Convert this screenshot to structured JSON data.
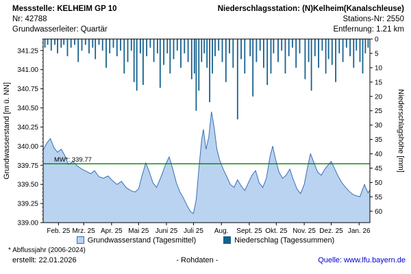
{
  "header": {
    "messstelle": "Messstelle: KELHEIM GP 10",
    "station": "Niederschlagsstation: (N)Kelheim(Kanalschleuse)",
    "nr": "Nr: 42788",
    "stations_nr": "Stations-Nr: 2550",
    "aquifer": "Grundwasserleiter: Quartär",
    "entfernung": "Entfernung: 1.21 km"
  },
  "chart_data": {
    "type": "combo-area-bar",
    "title": "",
    "x_axis": {
      "labels": [
        "Feb. 25",
        "Mrz. 25",
        "Apr. 25",
        "Mai 25",
        "Juni 25",
        "Juli 25",
        "Aug.",
        "Sept. 25",
        "Okt. 25",
        "Nov. 25",
        "Dez. 25",
        "Jan. 26"
      ],
      "tick_days": [
        17,
        45,
        76,
        106,
        137,
        167,
        198,
        229,
        259,
        290,
        320,
        351
      ],
      "total_days": 363
    },
    "left_axis": {
      "label": "Grundwasserstand [m ü. NN]",
      "min": 339.0,
      "max": 341.4,
      "minor_step": 0.05,
      "ticks": [
        339.0,
        339.25,
        339.5,
        339.75,
        340.0,
        340.25,
        340.5,
        340.75,
        341.0,
        341.25
      ]
    },
    "right_axis": {
      "label": "Niederschlagshöhe [mm]",
      "min": 0,
      "max": 64,
      "minor_step": 1,
      "inverted_from_top": true,
      "ticks": [
        0,
        5,
        10,
        15,
        20,
        25,
        30,
        35,
        40,
        45,
        50,
        55,
        60
      ]
    },
    "mean_line": {
      "label": "MW*: 339.77",
      "value": 339.77,
      "color": "#008000"
    },
    "series": [
      {
        "name": "Grundwasserstand (Tagesmittel)",
        "type": "area",
        "fill": "#b9d3f0",
        "line": "#3a6db4",
        "unit": "m ü. NN",
        "points": [
          [
            0,
            339.95
          ],
          [
            4,
            340.04
          ],
          [
            8,
            340.1
          ],
          [
            12,
            339.98
          ],
          [
            16,
            339.92
          ],
          [
            20,
            339.96
          ],
          [
            24,
            339.88
          ],
          [
            28,
            339.76
          ],
          [
            33,
            339.8
          ],
          [
            38,
            339.74
          ],
          [
            43,
            339.7
          ],
          [
            48,
            339.67
          ],
          [
            53,
            339.64
          ],
          [
            57,
            339.68
          ],
          [
            62,
            339.6
          ],
          [
            67,
            339.58
          ],
          [
            72,
            339.61
          ],
          [
            77,
            339.55
          ],
          [
            82,
            339.5
          ],
          [
            87,
            339.54
          ],
          [
            92,
            339.46
          ],
          [
            97,
            339.42
          ],
          [
            102,
            339.4
          ],
          [
            106,
            339.44
          ],
          [
            110,
            339.62
          ],
          [
            114,
            339.78
          ],
          [
            118,
            339.66
          ],
          [
            122,
            339.52
          ],
          [
            126,
            339.46
          ],
          [
            131,
            339.6
          ],
          [
            136,
            339.76
          ],
          [
            140,
            339.86
          ],
          [
            144,
            339.7
          ],
          [
            148,
            339.52
          ],
          [
            152,
            339.4
          ],
          [
            156,
            339.32
          ],
          [
            160,
            339.22
          ],
          [
            164,
            339.14
          ],
          [
            167,
            339.12
          ],
          [
            170,
            339.3
          ],
          [
            173,
            339.7
          ],
          [
            176,
            340.08
          ],
          [
            178,
            340.22
          ],
          [
            181,
            339.96
          ],
          [
            184,
            340.12
          ],
          [
            187,
            340.45
          ],
          [
            190,
            340.24
          ],
          [
            193,
            339.96
          ],
          [
            196,
            339.82
          ],
          [
            200,
            339.7
          ],
          [
            204,
            339.6
          ],
          [
            208,
            339.5
          ],
          [
            212,
            339.46
          ],
          [
            216,
            339.56
          ],
          [
            220,
            339.48
          ],
          [
            224,
            339.42
          ],
          [
            228,
            339.52
          ],
          [
            232,
            339.62
          ],
          [
            236,
            339.68
          ],
          [
            240,
            339.52
          ],
          [
            244,
            339.46
          ],
          [
            248,
            339.58
          ],
          [
            252,
            339.86
          ],
          [
            255,
            340.0
          ],
          [
            258,
            339.84
          ],
          [
            262,
            339.66
          ],
          [
            266,
            339.58
          ],
          [
            270,
            339.62
          ],
          [
            274,
            339.7
          ],
          [
            278,
            339.56
          ],
          [
            282,
            339.44
          ],
          [
            286,
            339.38
          ],
          [
            290,
            339.5
          ],
          [
            294,
            339.74
          ],
          [
            297,
            339.9
          ],
          [
            301,
            339.78
          ],
          [
            305,
            339.66
          ],
          [
            309,
            339.62
          ],
          [
            313,
            339.7
          ],
          [
            317,
            339.76
          ],
          [
            320,
            339.8
          ],
          [
            324,
            339.7
          ],
          [
            328,
            339.6
          ],
          [
            332,
            339.52
          ],
          [
            336,
            339.46
          ],
          [
            340,
            339.41
          ],
          [
            344,
            339.37
          ],
          [
            348,
            339.35
          ],
          [
            352,
            339.34
          ],
          [
            355,
            339.44
          ],
          [
            357,
            339.5
          ],
          [
            359,
            339.44
          ],
          [
            361,
            339.39
          ],
          [
            363,
            339.43
          ]
        ]
      },
      {
        "name": "Niederschlag (Tagessummen)",
        "type": "bar",
        "color": "#15618e",
        "unit": "mm",
        "points": [
          [
            2,
            3
          ],
          [
            5,
            2
          ],
          [
            9,
            4
          ],
          [
            13,
            2
          ],
          [
            16,
            5
          ],
          [
            20,
            3
          ],
          [
            23,
            2
          ],
          [
            27,
            6
          ],
          [
            31,
            3
          ],
          [
            35,
            2
          ],
          [
            39,
            8
          ],
          [
            43,
            4
          ],
          [
            47,
            2
          ],
          [
            51,
            5
          ],
          [
            55,
            3
          ],
          [
            58,
            7
          ],
          [
            62,
            2
          ],
          [
            66,
            4
          ],
          [
            70,
            10
          ],
          [
            74,
            5
          ],
          [
            78,
            3
          ],
          [
            82,
            6
          ],
          [
            86,
            4
          ],
          [
            90,
            12
          ],
          [
            94,
            8
          ],
          [
            98,
            4
          ],
          [
            101,
            15
          ],
          [
            104,
            18
          ],
          [
            108,
            5
          ],
          [
            111,
            16
          ],
          [
            115,
            6
          ],
          [
            119,
            3
          ],
          [
            123,
            8
          ],
          [
            127,
            5
          ],
          [
            130,
            17
          ],
          [
            134,
            9
          ],
          [
            138,
            5
          ],
          [
            141,
            12
          ],
          [
            145,
            7
          ],
          [
            149,
            4
          ],
          [
            153,
            10
          ],
          [
            157,
            5
          ],
          [
            161,
            8
          ],
          [
            165,
            14
          ],
          [
            168,
            12
          ],
          [
            170,
            25
          ],
          [
            173,
            18
          ],
          [
            176,
            8
          ],
          [
            179,
            5
          ],
          [
            182,
            10
          ],
          [
            185,
            22
          ],
          [
            188,
            12
          ],
          [
            191,
            6
          ],
          [
            195,
            4
          ],
          [
            199,
            8
          ],
          [
            203,
            15
          ],
          [
            207,
            5
          ],
          [
            211,
            10
          ],
          [
            216,
            28
          ],
          [
            220,
            7
          ],
          [
            224,
            12
          ],
          [
            230,
            6
          ],
          [
            233,
            20
          ],
          [
            237,
            8
          ],
          [
            241,
            4
          ],
          [
            245,
            10
          ],
          [
            249,
            16
          ],
          [
            253,
            12
          ],
          [
            256,
            5
          ],
          [
            261,
            8
          ],
          [
            265,
            4
          ],
          [
            269,
            12
          ],
          [
            273,
            6
          ],
          [
            277,
            3
          ],
          [
            281,
            10
          ],
          [
            285,
            5
          ],
          [
            291,
            14
          ],
          [
            295,
            8
          ],
          [
            298,
            18
          ],
          [
            302,
            6
          ],
          [
            306,
            10
          ],
          [
            310,
            4
          ],
          [
            314,
            12
          ],
          [
            317,
            7
          ],
          [
            321,
            9
          ],
          [
            325,
            15
          ],
          [
            329,
            5
          ],
          [
            333,
            8
          ],
          [
            337,
            3
          ],
          [
            341,
            6
          ],
          [
            345,
            10
          ],
          [
            348,
            4
          ],
          [
            352,
            8
          ],
          [
            355,
            12
          ],
          [
            358,
            5
          ],
          [
            361,
            3
          ]
        ]
      }
    ]
  },
  "legend": {
    "groundwater": "Grundwasserstand (Tagesmittel)",
    "precipitation": "Niederschlag (Tagessummen)"
  },
  "footer": {
    "note": "* Abflussjahr (2006-2024)",
    "created": "erstellt:  22.01.2026",
    "center": "- Rohdaten -",
    "source": "Quelle: www.lfu.bayern.de"
  },
  "colors": {
    "link": "#0000cc",
    "frame": "#000000"
  }
}
